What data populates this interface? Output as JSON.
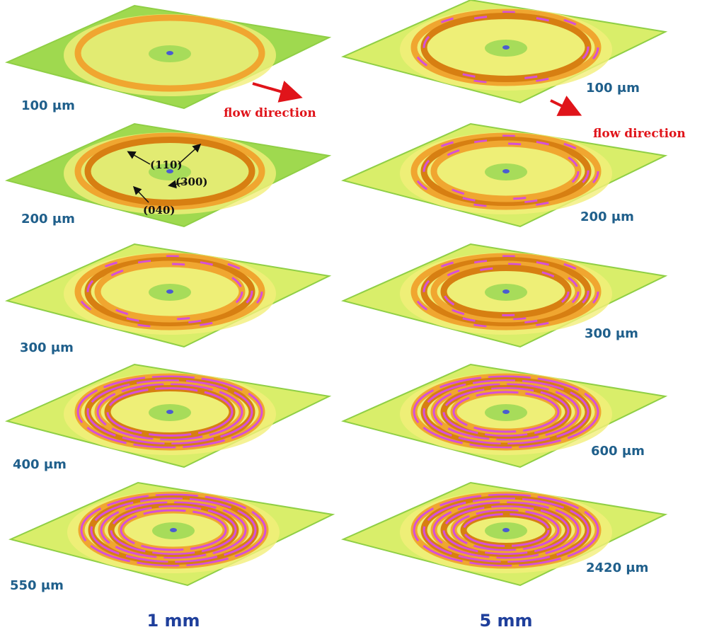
{
  "columns": [
    {
      "caption": "1 mm",
      "panels": [
        {
          "label": "100 μm"
        },
        {
          "label": "200 μm"
        },
        {
          "label": "300 μm"
        },
        {
          "label": "400 μm"
        },
        {
          "label": "550 μm"
        }
      ]
    },
    {
      "caption": "5 mm",
      "panels": [
        {
          "label": "100 μm"
        },
        {
          "label": "200 μm"
        },
        {
          "label": "300 μm"
        },
        {
          "label": "600 μm"
        },
        {
          "label": "2420 μm"
        }
      ]
    }
  ],
  "annotations": {
    "flow_direction": [
      "flow direction",
      "flow direction"
    ],
    "peaks": [
      "(110)",
      "(300)",
      "(040)"
    ]
  }
}
